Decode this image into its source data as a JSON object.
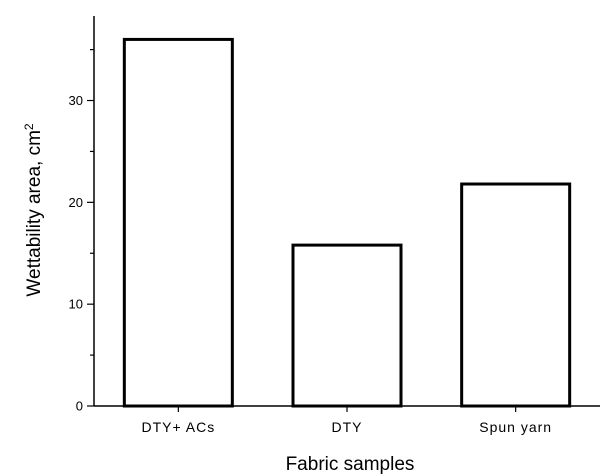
{
  "chart_data": {
    "type": "bar",
    "title": "",
    "xlabel": "Fabric samples",
    "ylabel": "Wettability area, cm",
    "ylabel_superscript": "2",
    "categories": [
      "DTY+ ACs",
      "DTY",
      "Spun yarn"
    ],
    "values": [
      36,
      15.8,
      21.8
    ],
    "ylim": [
      0,
      38.3
    ],
    "yticks": [
      0,
      10,
      20,
      30
    ],
    "grid": false,
    "legend": "none",
    "colors": {
      "bar_fill": "#ffffff",
      "bar_stroke": "#000000",
      "axis": "#000000"
    }
  }
}
